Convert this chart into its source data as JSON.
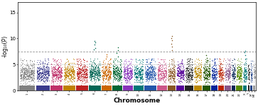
{
  "title": "",
  "xlabel": "Chromosome",
  "ylabel": "-log₁₀(P)",
  "ylim": [
    0,
    17
  ],
  "yticks": [
    0,
    5,
    10,
    15
  ],
  "suggestive_line": 5.0,
  "gwas_line": 7.5,
  "chromosomes": [
    "1",
    "2",
    "3",
    "4",
    "5",
    "6",
    "7",
    "8",
    "9",
    "10",
    "11",
    "12",
    "13",
    "14",
    "15",
    "16",
    "17",
    "18",
    "19",
    "20",
    "21",
    "22",
    "X",
    "Y",
    "XY",
    "MT"
  ],
  "chr_colors": [
    "#808080",
    "#3a3a8c",
    "#c0306a",
    "#c08000",
    "#bb2020",
    "#006655",
    "#cc6600",
    "#006633",
    "#8833bb",
    "#007777",
    "#2255aa",
    "#cc5588",
    "#885522",
    "#550099",
    "#222222",
    "#bb8800",
    "#225500",
    "#002299",
    "#bb2200",
    "#885588",
    "#002255",
    "#558800",
    "#007777",
    "#222222",
    "#224488",
    "#999999"
  ],
  "chr_widths": [
    8,
    7,
    6,
    6,
    6,
    6,
    5,
    5,
    5,
    5,
    6,
    5,
    4,
    4,
    4,
    4,
    4,
    3,
    3,
    3,
    2,
    3,
    2,
    1,
    1,
    1
  ],
  "base_mean": 3.2,
  "base_spread": 0.8,
  "seed": 12345,
  "peaks": {
    "6": [
      9.5,
      9.2,
      8.8,
      8.2,
      7.9
    ],
    "7": [
      6.9,
      6.5,
      6.1
    ],
    "8": [
      8.3,
      7.8,
      7.2,
      6.5
    ],
    "11": [
      5.8,
      5.5,
      5.2
    ],
    "13": [
      10.5,
      10.1,
      9.6,
      9.0,
      8.4,
      7.8
    ],
    "15": [
      6.1,
      5.7
    ],
    "17": [
      6.8,
      6.3,
      5.9
    ],
    "18": [
      5.2,
      5.5,
      6.2
    ],
    "X": [
      7.6,
      7.3,
      6.8
    ]
  }
}
